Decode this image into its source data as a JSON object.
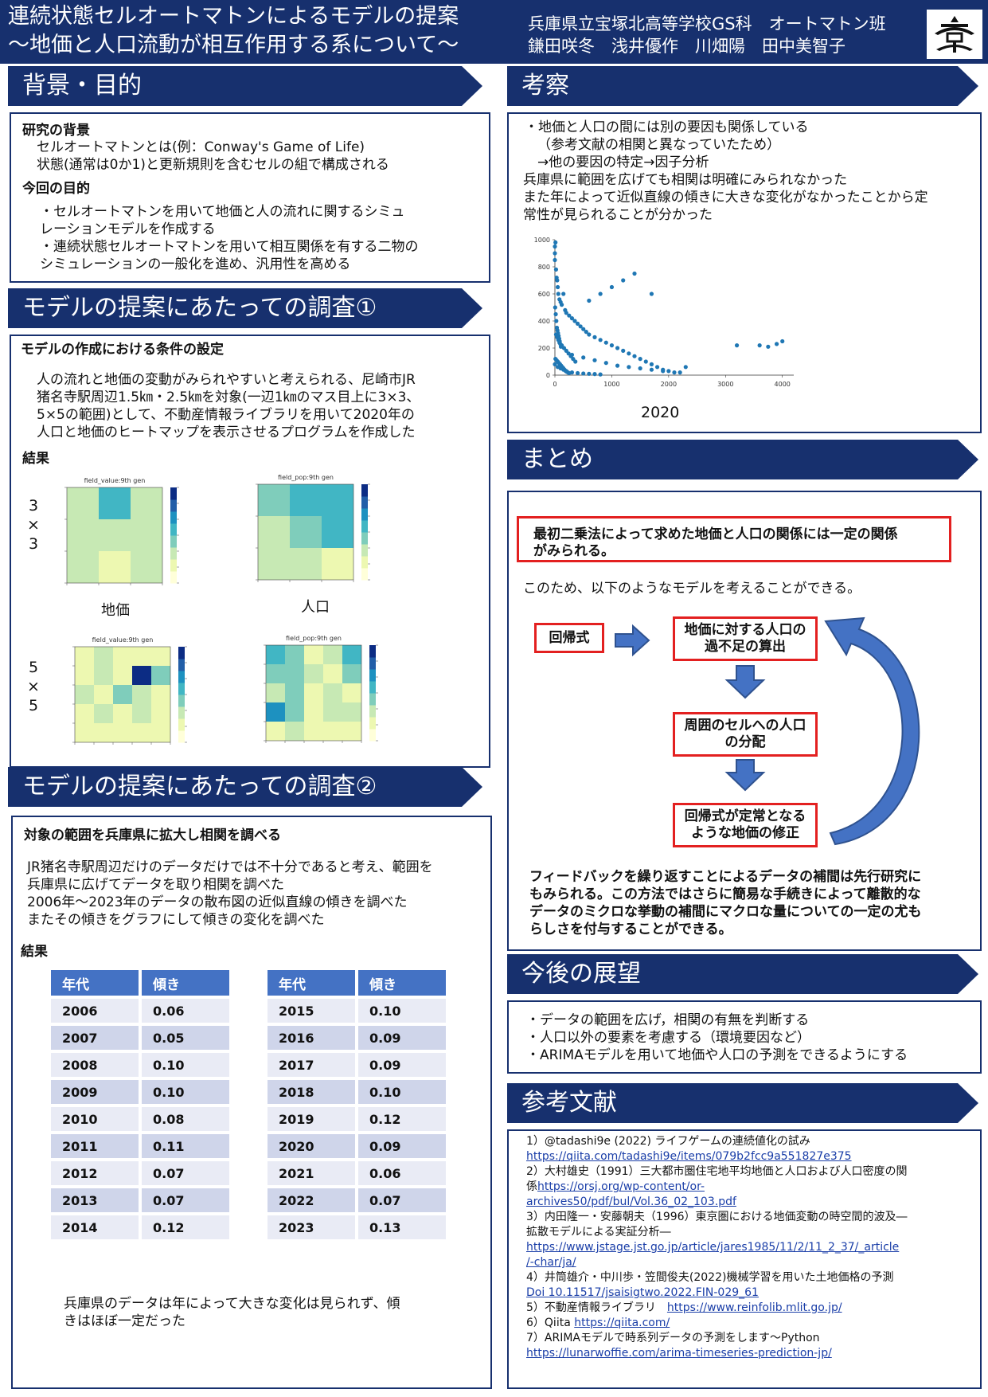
{
  "header": {
    "title_line1": "連続状態セルオートマトンによるモデルの提案",
    "title_line2": "〜地価と人口流動が相互作用する系について〜",
    "affiliation": "兵庫県立宝塚北高等学校GS科　オートマトン班",
    "authors": "鎌田咲冬　浅井優作　川畑陽　田中美智子"
  },
  "background": {
    "heading": "背景・目的",
    "sub1": "研究の背景",
    "p1": "セルオートマトンとは(例：Conway's Game of Life)",
    "p2": "状態(通常は0か1)と更新規則を含むセルの組で構成される",
    "sub2": "今回の目的",
    "p3": "・セルオートマトンを用いて地価と人の流れに関するシミュ",
    "p4": "レーションモデルを作成する",
    "p5": "・連続状態セルオートマトンを用いて相互関係を有する二物の",
    "p6": "シミュレーションの一般化を進め、汎用性を高める"
  },
  "survey1": {
    "heading": "モデルの提案にあたっての調査①",
    "sub": "モデルの作成における条件の設定",
    "l1": "人の流れと地価の変動がみられやすいと考えられる、尼崎市JR",
    "l2": "猪名寺駅周辺1.5㎞・2.5㎞を対象(一辺1㎞のマス目上に3×3、",
    "l3": "5×5の範囲)として、不動産情報ライブラリを用いて2020年の",
    "l4": "人口と地価のヒートマップを表示させるプログラムを作成した",
    "result": "結果",
    "row1_label": [
      "3",
      "×",
      "3"
    ],
    "row2_label": [
      "5",
      "×",
      "5"
    ],
    "cap_land": "地価",
    "cap_pop": "人口",
    "hm_titles": [
      "field_value:9th gen",
      "field_pop:9th gen",
      "field_value:9th gen",
      "field_pop:9th gen"
    ]
  },
  "survey2": {
    "heading": "モデルの提案にあたっての調査②",
    "sub": "対象の範囲を兵庫県に拡大し相関を調べる",
    "l1": "JR猪名寺駅周辺だけのデータだけでは不十分であると考え、範囲を",
    "l2": "兵庫県に広げてデータを取り相関を調べた",
    "l3": "2006年〜2023年のデータの散布図の近似直線の傾きを調べた",
    "l4": "またその傾きをグラフにして傾きの変化を調べた",
    "result": "結果",
    "col_year": "年代",
    "col_slope": "傾き",
    "table_left": [
      [
        "2006",
        "0.06"
      ],
      [
        "2007",
        "0.05"
      ],
      [
        "2008",
        "0.10"
      ],
      [
        "2009",
        "0.10"
      ],
      [
        "2010",
        "0.08"
      ],
      [
        "2011",
        "0.11"
      ],
      [
        "2012",
        "0.07"
      ],
      [
        "2013",
        "0.07"
      ],
      [
        "2014",
        "0.12"
      ]
    ],
    "table_right": [
      [
        "2015",
        "0.10"
      ],
      [
        "2016",
        "0.09"
      ],
      [
        "2017",
        "0.09"
      ],
      [
        "2018",
        "0.10"
      ],
      [
        "2019",
        "0.12"
      ],
      [
        "2020",
        "0.09"
      ],
      [
        "2021",
        "0.06"
      ],
      [
        "2022",
        "0.07"
      ],
      [
        "2023",
        "0.13"
      ]
    ],
    "c1": "兵庫県のデータは年によって大きな変化は見られず、傾",
    "c2": "きはほぼ一定だった"
  },
  "discussion": {
    "heading": "考察",
    "l1": "・地価と人口の間には別の要因も関係している",
    "l2": "（参考文献の相関と異なっていたため）",
    "l3": "→他の要因の特定→因子分析",
    "l4": "兵庫県に範囲を広げても相関は明確にみられなかった",
    "l5": "また年によって近似直線の傾きに大きな変化がなかったことから定",
    "l6": "常性が見られることが分かった",
    "scatter_caption": "2020"
  },
  "chart_data": {
    "type": "scatter",
    "title": "",
    "caption": "2020",
    "xlim": [
      0,
      4200
    ],
    "ylim": [
      0,
      1000
    ],
    "xticks": [
      0,
      1000,
      2000,
      3000,
      4000
    ],
    "yticks": [
      0,
      200,
      400,
      600,
      800,
      1000
    ],
    "color": "#1f77b4",
    "x": [
      0,
      0,
      0,
      10,
      20,
      30,
      40,
      50,
      60,
      80,
      100,
      120,
      150,
      180,
      200,
      250,
      300,
      350,
      400,
      450,
      500,
      550,
      600,
      700,
      800,
      900,
      1000,
      1100,
      1200,
      1300,
      1400,
      1500,
      1600,
      1700,
      1800,
      1900,
      2000,
      2200,
      2300,
      3200,
      3600,
      3750,
      3900,
      4000,
      0,
      50,
      100,
      150,
      200,
      300,
      400,
      500,
      600,
      700,
      800,
      20,
      40,
      60,
      80,
      120,
      160,
      200,
      240,
      280,
      320,
      360,
      10,
      30,
      50,
      70,
      90,
      110,
      130,
      150,
      170,
      190,
      210,
      230,
      250,
      5,
      15,
      25,
      35,
      45,
      55,
      65,
      75,
      85,
      95,
      105,
      300,
      500,
      700,
      900,
      1100,
      1300,
      1500,
      1700,
      1900,
      2100,
      600,
      800,
      1000,
      1200,
      1400,
      1700
    ],
    "y": [
      950,
      900,
      850,
      980,
      780,
      720,
      700,
      650,
      600,
      560,
      540,
      520,
      600,
      480,
      460,
      440,
      420,
      400,
      380,
      360,
      340,
      320,
      300,
      280,
      260,
      240,
      220,
      200,
      180,
      160,
      140,
      120,
      100,
      80,
      60,
      40,
      30,
      20,
      60,
      220,
      220,
      210,
      230,
      250,
      80,
      60,
      50,
      40,
      30,
      20,
      15,
      12,
      10,
      8,
      5,
      300,
      280,
      260,
      240,
      220,
      200,
      180,
      160,
      140,
      120,
      100,
      120,
      110,
      100,
      90,
      80,
      70,
      60,
      50,
      40,
      30,
      25,
      20,
      15,
      500,
      450,
      400,
      350,
      330,
      310,
      290,
      270,
      250,
      230,
      210,
      150,
      130,
      110,
      90,
      70,
      60,
      50,
      40,
      30,
      20,
      550,
      600,
      650,
      700,
      750,
      600
    ]
  },
  "summary": {
    "heading": "まとめ",
    "main_l1": "最初二乗法によって求めた地価と人口の関係には一定の関係",
    "main_l2": "がみられる。",
    "lead": "このため、以下のようなモデルを考えることができる。",
    "box_regression": "回帰式",
    "box1_l1": "地価に対する人口の",
    "box1_l2": "過不足の算出",
    "box2_l1": "周囲のセルへの人口",
    "box2_l2": "の分配",
    "box3_l1": "回帰式が定常となる",
    "box3_l2": "ような地価の修正",
    "f1": "フィードバックを繰り返すことによるデータの補間は先行研究に",
    "f2": "もみられる。この方法ではさらに簡易な手続きによって離散的な",
    "f3": "データのミクロな挙動の補間にマクロな量についての一定の尤も",
    "f4": "らしさを付与することができる。"
  },
  "outlook": {
    "heading": "今後の展望",
    "l1": "・データの範囲を広げ，相関の有無を判断する",
    "l2": "・人口以外の要素を考慮する（環境要因など）",
    "l3": "・ARIMAモデルを用いて地価や人口の予測をできるようにする"
  },
  "references": {
    "heading": "参考文献",
    "r1": "1）@tadashi9e (2022) ライフゲームの連続値化の試み",
    "r1_url": "https://qiita.com/tadashi9e/items/079b2fcc9a551827e375",
    "r2": "2）大村雄史（1991）三大都市圏住宅地平均地価と人口および人口密度の関",
    "r2b": "係",
    "r2_url1": "https://orsj.org/wp-content/or-",
    "r2_url2": "archives50/pdf/bul/Vol.36_02_103.pdf",
    "r3": "3）内田隆一・安藤朝夫（1996）東京圏における地価変動の時空間的波及―",
    "r3b": "拡散モデルによる実証分析―",
    "r3_url1": "https://www.jstage.jst.go.jp/article/jares1985/11/2/11_2_37/_article",
    "r3_url2": "/-char/ja/",
    "r4": "4）井筒雄介・中川歩・笠間俊夫(2022)機械学習を用いた土地価格の予測",
    "r4_url": "Doi 10.11517/jsaisigtwo.2022.FIN-029_61",
    "r5": "5）不動産情報ライブラリ　",
    "r5_url": "https://www.reinfolib.mlit.go.jp/",
    "r6": "6）Qiita ",
    "r6_url": "https://qiita.com/",
    "r7": "7）ARIMAモデルで時系列データの予測をします〜Python",
    "r7_url": "https://lunarwoffie.com/arima-timeseries-prediction-jp/"
  }
}
